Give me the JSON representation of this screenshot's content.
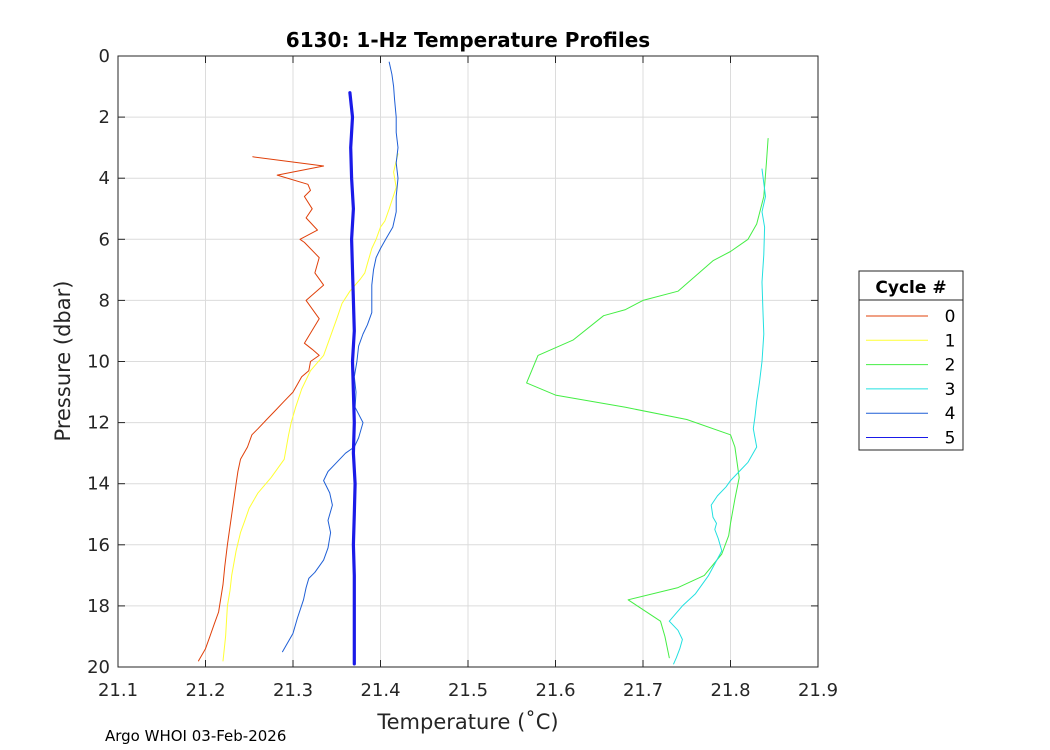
{
  "chart_data": {
    "type": "line",
    "title": "6130: 1-Hz Temperature Profiles",
    "xlabel": "Temperature (˚C)",
    "ylabel": "Pressure (dbar)",
    "xlim": [
      21.1,
      21.9
    ],
    "ylim": [
      0,
      20
    ],
    "y_reversed": true,
    "grid": true,
    "xticks": [
      "21.1",
      "21.2",
      "21.3",
      "21.4",
      "21.5",
      "21.6",
      "21.7",
      "21.8",
      "21.9"
    ],
    "yticks": [
      "0",
      "2",
      "4",
      "6",
      "8",
      "10",
      "12",
      "14",
      "16",
      "18",
      "20"
    ],
    "legend": {
      "title": "Cycle #",
      "placement": "right"
    },
    "series": [
      {
        "name": "0",
        "color": "#e0400a",
        "width": 1,
        "x": [
          21.254,
          21.335,
          21.282,
          21.317,
          21.32,
          21.313,
          21.322,
          21.315,
          21.328,
          21.308,
          21.313,
          21.33,
          21.325,
          21.335,
          21.315,
          21.33,
          21.313,
          21.322,
          21.33,
          21.32,
          21.318,
          21.31,
          21.3,
          21.29,
          21.28,
          21.27,
          21.26,
          21.253,
          21.248,
          21.24,
          21.237,
          21.235,
          21.232,
          21.228,
          21.225,
          21.222,
          21.22,
          21.215,
          21.21,
          21.205,
          21.2,
          21.192
        ],
        "y": [
          3.3,
          3.6,
          3.9,
          4.2,
          4.4,
          4.6,
          5.0,
          5.3,
          5.7,
          6.0,
          6.1,
          6.6,
          7.1,
          7.5,
          8.0,
          8.6,
          9.4,
          9.6,
          9.8,
          10.0,
          10.3,
          10.5,
          11.0,
          11.3,
          11.6,
          11.9,
          12.2,
          12.4,
          12.8,
          13.2,
          13.6,
          14.0,
          14.6,
          15.4,
          16.0,
          16.7,
          17.3,
          18.2,
          18.6,
          19.0,
          19.4,
          19.8
        ]
      },
      {
        "name": "1",
        "color": "#ffff33",
        "width": 1,
        "x": [
          21.42,
          21.415,
          21.418,
          21.41,
          21.405,
          21.4,
          21.395,
          21.39,
          21.385,
          21.382,
          21.377,
          21.365,
          21.356,
          21.35,
          21.345,
          21.335,
          21.32,
          21.31,
          21.303,
          21.298,
          21.295,
          21.29,
          21.275,
          21.26,
          21.25,
          21.245,
          21.24,
          21.235,
          21.23,
          21.228,
          21.225,
          21.223,
          21.22
        ],
        "y": [
          3.2,
          3.8,
          4.3,
          5.0,
          5.4,
          5.6,
          6.0,
          6.3,
          6.8,
          7.1,
          7.3,
          7.7,
          8.1,
          8.6,
          9.0,
          9.8,
          10.3,
          10.9,
          11.5,
          12.0,
          12.4,
          13.2,
          13.8,
          14.3,
          14.8,
          15.2,
          15.6,
          16.2,
          17.0,
          17.5,
          18.0,
          19.0,
          19.8
        ]
      },
      {
        "name": "2",
        "color": "#44ee44",
        "width": 1,
        "x": [
          21.843,
          21.841,
          21.838,
          21.83,
          21.82,
          21.8,
          21.78,
          21.76,
          21.74,
          21.7,
          21.68,
          21.655,
          21.62,
          21.58,
          21.567,
          21.6,
          21.68,
          21.75,
          21.8,
          21.805,
          21.81,
          21.805,
          21.8,
          21.798,
          21.79,
          21.77,
          21.74,
          21.683,
          21.72,
          21.725,
          21.73
        ],
        "y": [
          2.7,
          3.5,
          4.6,
          5.5,
          6.0,
          6.4,
          6.7,
          7.2,
          7.7,
          8.0,
          8.3,
          8.5,
          9.3,
          9.8,
          10.7,
          11.1,
          11.5,
          11.9,
          12.4,
          12.8,
          13.8,
          14.5,
          15.3,
          15.7,
          16.3,
          17.0,
          17.4,
          17.8,
          18.5,
          19.0,
          19.7
        ]
      },
      {
        "name": "3",
        "color": "#22e0e0",
        "width": 1,
        "x": [
          21.836,
          21.84,
          21.836,
          21.839,
          21.838,
          21.836,
          21.837,
          21.838,
          21.836,
          21.833,
          21.83,
          21.828,
          21.826,
          21.83,
          21.82,
          21.81,
          21.8,
          21.795,
          21.785,
          21.778,
          21.78,
          21.784,
          21.782,
          21.786,
          21.79,
          21.775,
          21.76,
          21.745,
          21.73,
          21.74,
          21.745,
          21.742,
          21.738,
          21.735
        ],
        "y": [
          3.7,
          4.6,
          5.1,
          5.6,
          6.5,
          7.4,
          8.3,
          9.1,
          10.0,
          10.7,
          11.3,
          11.8,
          12.2,
          12.8,
          13.3,
          13.6,
          13.9,
          14.1,
          14.4,
          14.7,
          15.1,
          15.3,
          15.5,
          15.8,
          16.2,
          17.0,
          17.6,
          18.0,
          18.5,
          18.8,
          19.1,
          19.4,
          19.7,
          19.9
        ]
      },
      {
        "name": "4",
        "color": "#1f5fd6",
        "width": 1,
        "x": [
          21.41,
          21.413,
          21.415,
          21.416,
          21.418,
          21.418,
          21.42,
          21.418,
          21.42,
          21.418,
          21.418,
          21.414,
          21.406,
          21.4,
          21.395,
          21.392,
          21.39,
          21.39,
          21.39,
          21.385,
          21.38,
          21.375,
          21.373,
          21.37,
          21.372,
          21.371,
          21.38,
          21.375,
          21.37,
          21.36,
          21.35,
          21.34,
          21.335,
          21.342,
          21.345,
          21.34,
          21.343,
          21.34,
          21.335,
          21.325,
          21.318,
          21.315,
          21.312,
          21.305,
          21.3,
          21.288
        ],
        "y": [
          0.2,
          0.6,
          1.0,
          1.4,
          2.0,
          2.5,
          3.0,
          3.5,
          4.0,
          4.6,
          5.1,
          5.6,
          6.0,
          6.3,
          6.6,
          7.0,
          7.5,
          8.0,
          8.4,
          8.8,
          9.1,
          9.5,
          10.0,
          10.5,
          11.0,
          11.5,
          12.0,
          12.5,
          12.8,
          13.0,
          13.3,
          13.6,
          13.9,
          14.3,
          14.7,
          15.2,
          15.6,
          16.1,
          16.5,
          16.9,
          17.1,
          17.4,
          17.8,
          18.4,
          18.9,
          19.5
        ]
      },
      {
        "name": "5",
        "color": "#1a1ae8",
        "width": 3.2,
        "x": [
          21.365,
          21.368,
          21.366,
          21.367,
          21.369,
          21.367,
          21.368,
          21.369,
          21.37,
          21.368,
          21.369,
          21.37,
          21.369,
          21.371,
          21.37,
          21.369,
          21.37,
          21.37
        ],
        "y": [
          1.2,
          2.0,
          3.0,
          4.0,
          5.0,
          6.0,
          7.0,
          8.0,
          9.0,
          10.0,
          11.0,
          12.0,
          13.0,
          14.0,
          15.0,
          16.0,
          17.0,
          19.9
        ]
      }
    ]
  },
  "footer": "Argo WHOI 03-Feb-2026"
}
